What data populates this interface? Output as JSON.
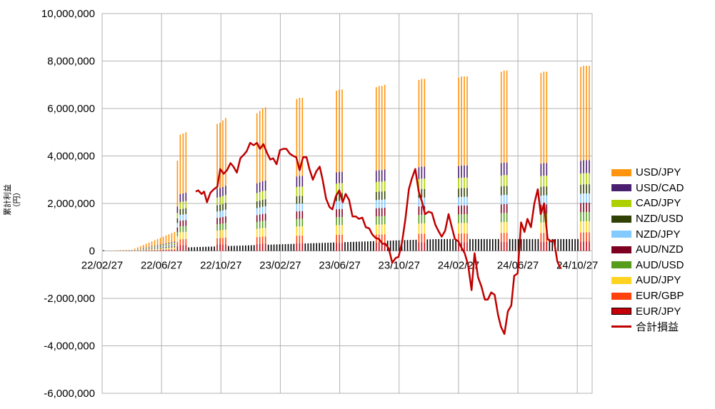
{
  "chart_data": {
    "type": "bar",
    "stacked": true,
    "title": "",
    "ylabel": "累計利益\n（円）",
    "ylim": [
      -6000000,
      10000000
    ],
    "yticks": [
      10000000,
      8000000,
      6000000,
      4000000,
      2000000,
      0,
      -2000000,
      -4000000,
      -6000000
    ],
    "ytick_labels": [
      "10,000,000",
      "8,000,000",
      "6,000,000",
      "4,000,000",
      "2,000,000",
      "0",
      "-2,000,000",
      "-4,000,000",
      "-6,000,000"
    ],
    "xtick_labels": [
      "22/02/27",
      "22/06/27",
      "22/10/27",
      "23/02/27",
      "23/06/27",
      "23/10/27",
      "24/02/27",
      "24/06/27",
      "24/10/27"
    ],
    "grid": true,
    "legend_position": "right",
    "series": [
      {
        "name": "USD/JPY",
        "color": "#ff950e",
        "share": 0.51
      },
      {
        "name": "USD/CAD",
        "color": "#4b1f6f",
        "share": 0.07
      },
      {
        "name": "CAD/JPY",
        "color": "#aecf00",
        "share": 0.06
      },
      {
        "name": "NZD/USD",
        "color": "#314004",
        "share": 0.05
      },
      {
        "name": "NZD/JPY",
        "color": "#83caff",
        "share": 0.05
      },
      {
        "name": "AUD/NZD",
        "color": "#7e0021",
        "share": 0.05
      },
      {
        "name": "AUD/USD",
        "color": "#579d1c",
        "share": 0.05
      },
      {
        "name": "AUD/JPY",
        "color": "#ffd320",
        "share": 0.06
      },
      {
        "name": "EUR/GBP",
        "color": "#ff420e",
        "share": 0.05
      },
      {
        "name": "EUR/JPY",
        "color": "#c5000b",
        "share": 0.05
      }
    ],
    "stack_totals_weekly": [
      0,
      5000,
      10000,
      15000,
      20000,
      25000,
      30000,
      35000,
      40000,
      45000,
      50000,
      100000,
      150000,
      200000,
      250000,
      300000,
      350000,
      400000,
      450000,
      500000,
      550000,
      600000,
      650000,
      700000,
      750000,
      800000,
      3800000,
      4900000,
      4950000,
      5000000,
      0,
      0,
      0,
      0,
      0,
      0,
      0,
      0,
      0,
      0,
      5350000,
      5400000,
      5500000,
      5600000,
      0,
      0,
      0,
      0,
      0,
      0,
      0,
      0,
      0,
      0,
      5800000,
      5900000,
      6000000,
      6050000,
      0,
      0,
      0,
      0,
      0,
      0,
      0,
      0,
      0,
      0,
      6400000,
      6450000,
      6450000,
      0,
      0,
      0,
      0,
      0,
      0,
      0,
      0,
      0,
      0,
      0,
      6750000,
      6800000,
      6800000,
      0,
      0,
      0,
      0,
      0,
      0,
      0,
      0,
      0,
      0,
      0,
      6900000,
      6950000,
      6950000,
      7000000,
      0,
      0,
      0,
      0,
      0,
      0,
      0,
      0,
      0,
      0,
      0,
      7200000,
      7250000,
      7250000,
      0,
      0,
      0,
      0,
      0,
      0,
      0,
      0,
      0,
      0,
      0,
      7300000,
      7350000,
      7350000,
      7350000,
      0,
      0,
      0,
      0,
      0,
      0,
      0,
      0,
      0,
      0,
      0,
      7550000,
      7600000,
      7600000,
      0,
      0,
      0,
      0,
      0,
      0,
      0,
      0,
      0,
      0,
      0,
      7500000,
      7550000,
      7550000,
      0,
      0,
      0,
      0,
      0,
      0,
      0,
      0,
      0,
      0,
      0,
      7750000,
      7800000,
      7800000,
      7800000
    ],
    "base_totals_weekly_note": "",
    "total_pnl": {
      "name": "合計損益",
      "color": "#c00000",
      "points": [
        [
          0.191,
          2500000
        ],
        [
          0.196,
          2550000
        ],
        [
          0.203,
          2400000
        ],
        [
          0.208,
          2500000
        ],
        [
          0.214,
          2050000
        ],
        [
          0.221,
          2450000
        ],
        [
          0.228,
          2600000
        ],
        [
          0.235,
          2700000
        ],
        [
          0.241,
          3450000
        ],
        [
          0.248,
          3250000
        ],
        [
          0.255,
          3400000
        ],
        [
          0.262,
          3700000
        ],
        [
          0.268,
          3550000
        ],
        [
          0.275,
          3300000
        ],
        [
          0.282,
          3900000
        ],
        [
          0.289,
          4050000
        ],
        [
          0.295,
          4200000
        ],
        [
          0.302,
          4550000
        ],
        [
          0.309,
          4450000
        ],
        [
          0.316,
          4550000
        ],
        [
          0.322,
          4300000
        ],
        [
          0.329,
          4500000
        ],
        [
          0.336,
          4150000
        ],
        [
          0.343,
          3850000
        ],
        [
          0.349,
          3900000
        ],
        [
          0.356,
          3650000
        ],
        [
          0.363,
          4250000
        ],
        [
          0.37,
          4300000
        ],
        [
          0.376,
          4300000
        ],
        [
          0.383,
          4100000
        ],
        [
          0.39,
          4000000
        ],
        [
          0.396,
          3950000
        ],
        [
          0.403,
          3400000
        ],
        [
          0.41,
          3950000
        ],
        [
          0.417,
          3950000
        ],
        [
          0.423,
          3450000
        ],
        [
          0.43,
          3000000
        ],
        [
          0.437,
          3350000
        ],
        [
          0.444,
          3550000
        ],
        [
          0.45,
          3000000
        ],
        [
          0.457,
          2200000
        ],
        [
          0.464,
          1850000
        ],
        [
          0.47,
          1750000
        ],
        [
          0.477,
          2300000
        ],
        [
          0.484,
          2550000
        ],
        [
          0.491,
          2050000
        ],
        [
          0.497,
          2400000
        ],
        [
          0.504,
          2150000
        ],
        [
          0.511,
          1450000
        ],
        [
          0.518,
          1450000
        ],
        [
          0.524,
          1350000
        ],
        [
          0.531,
          1400000
        ],
        [
          0.538,
          1000000
        ],
        [
          0.545,
          950000
        ],
        [
          0.551,
          700000
        ],
        [
          0.558,
          550000
        ],
        [
          0.565,
          500000
        ],
        [
          0.572,
          300000
        ],
        [
          0.578,
          300000
        ],
        [
          0.585,
          100000
        ],
        [
          0.592,
          -500000
        ],
        [
          0.599,
          -300000
        ],
        [
          0.605,
          -250000
        ],
        [
          0.612,
          350000
        ],
        [
          0.619,
          1350000
        ],
        [
          0.626,
          2600000
        ],
        [
          0.632,
          3050000
        ],
        [
          0.639,
          3450000
        ],
        [
          0.646,
          2500000
        ],
        [
          0.653,
          2050000
        ],
        [
          0.659,
          1550000
        ],
        [
          0.666,
          1650000
        ],
        [
          0.673,
          1600000
        ],
        [
          0.68,
          1100000
        ],
        [
          0.686,
          850000
        ],
        [
          0.693,
          600000
        ],
        [
          0.7,
          850000
        ],
        [
          0.707,
          1550000
        ],
        [
          0.713,
          1050000
        ],
        [
          0.72,
          500000
        ],
        [
          0.727,
          400000
        ],
        [
          0.733,
          150000
        ],
        [
          0.74,
          -100000
        ],
        [
          0.747,
          -600000
        ],
        [
          0.754,
          -1650000
        ],
        [
          0.76,
          -100000
        ],
        [
          0.767,
          -1100000
        ],
        [
          0.774,
          -1500000
        ],
        [
          0.781,
          -2050000
        ],
        [
          0.787,
          -2050000
        ],
        [
          0.794,
          -1750000
        ],
        [
          0.801,
          -1850000
        ],
        [
          0.808,
          -2700000
        ],
        [
          0.814,
          -3200000
        ],
        [
          0.821,
          -3500000
        ],
        [
          0.828,
          -2550000
        ],
        [
          0.835,
          -2300000
        ],
        [
          0.841,
          -1050000
        ],
        [
          0.848,
          -950000
        ],
        [
          0.855,
          1200000
        ],
        [
          0.862,
          800000
        ],
        [
          0.868,
          1350000
        ],
        [
          0.875,
          1000000
        ],
        [
          0.882,
          2000000
        ],
        [
          0.889,
          2600000
        ],
        [
          0.895,
          1550000
        ],
        [
          0.902,
          2000000
        ],
        [
          0.909,
          500000
        ],
        [
          0.916,
          400000
        ],
        [
          0.922,
          450000
        ],
        [
          0.929,
          -450000
        ],
        [
          0.936,
          -750000
        ]
      ]
    }
  }
}
